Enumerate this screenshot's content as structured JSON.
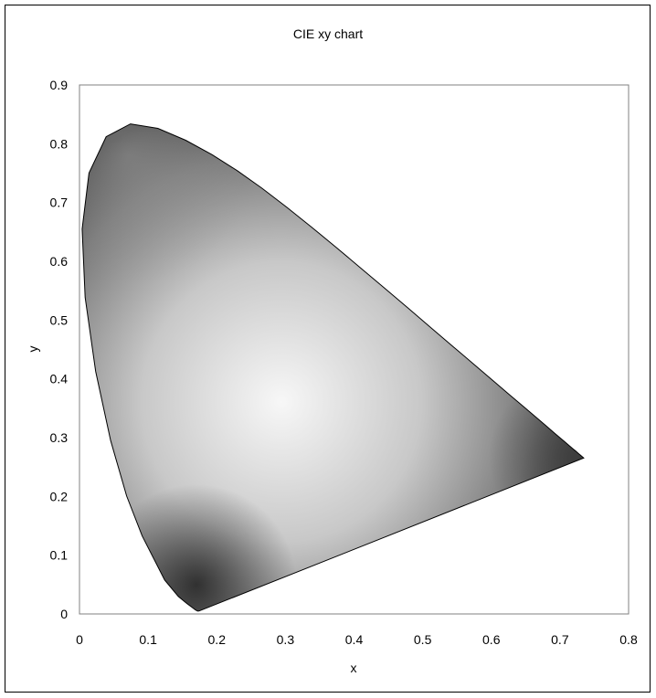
{
  "chart_data": {
    "type": "scatter",
    "title": "CIE xy chart",
    "xlabel": "x",
    "ylabel": "y",
    "xlim": [
      0,
      0.8
    ],
    "ylim": [
      0,
      0.9
    ],
    "x_ticks": [
      "0",
      "0.1",
      "0.2",
      "0.3",
      "0.4",
      "0.5",
      "0.6",
      "0.7",
      "0.8"
    ],
    "y_ticks": [
      "0",
      "0.1",
      "0.2",
      "0.3",
      "0.4",
      "0.5",
      "0.6",
      "0.7",
      "0.8",
      "0.9"
    ],
    "grid": false,
    "legend": "none",
    "colors": {
      "outline": "#000000",
      "fill_light": "#f2f2f2",
      "fill_dark": "#2e2e2e",
      "plot_border": "#808080"
    },
    "series": [
      {
        "x": [
          0.1741,
          0.1738,
          0.1721,
          0.1689,
          0.1644,
          0.1566,
          0.144,
          0.1241,
          0.0913,
          0.0687,
          0.0454,
          0.0235,
          0.0082,
          0.0039,
          0.0139,
          0.0389,
          0.0743,
          0.1142,
          0.1547,
          0.1929,
          0.2296,
          0.2658,
          0.3016,
          0.3373,
          0.3731,
          0.4087,
          0.4441,
          0.4788,
          0.5125,
          0.5448,
          0.5752,
          0.6029,
          0.627,
          0.6482,
          0.6658,
          0.6801,
          0.6915,
          0.7006,
          0.7079,
          0.714,
          0.719,
          0.723,
          0.726,
          0.7283,
          0.73,
          0.7347,
          0.1741
        ],
        "y": [
          0.005,
          0.0049,
          0.0048,
          0.0069,
          0.0109,
          0.0177,
          0.0297,
          0.0578,
          0.1327,
          0.2007,
          0.295,
          0.4127,
          0.5384,
          0.6548,
          0.7502,
          0.812,
          0.8338,
          0.8262,
          0.8059,
          0.7816,
          0.7543,
          0.7243,
          0.6923,
          0.6589,
          0.6245,
          0.5896,
          0.5547,
          0.5202,
          0.4866,
          0.4544,
          0.4242,
          0.3965,
          0.3725,
          0.3514,
          0.334,
          0.3197,
          0.3083,
          0.2993,
          0.292,
          0.2859,
          0.2809,
          0.277,
          0.274,
          0.2717,
          0.27,
          0.2653,
          0.005
        ]
      }
    ]
  }
}
